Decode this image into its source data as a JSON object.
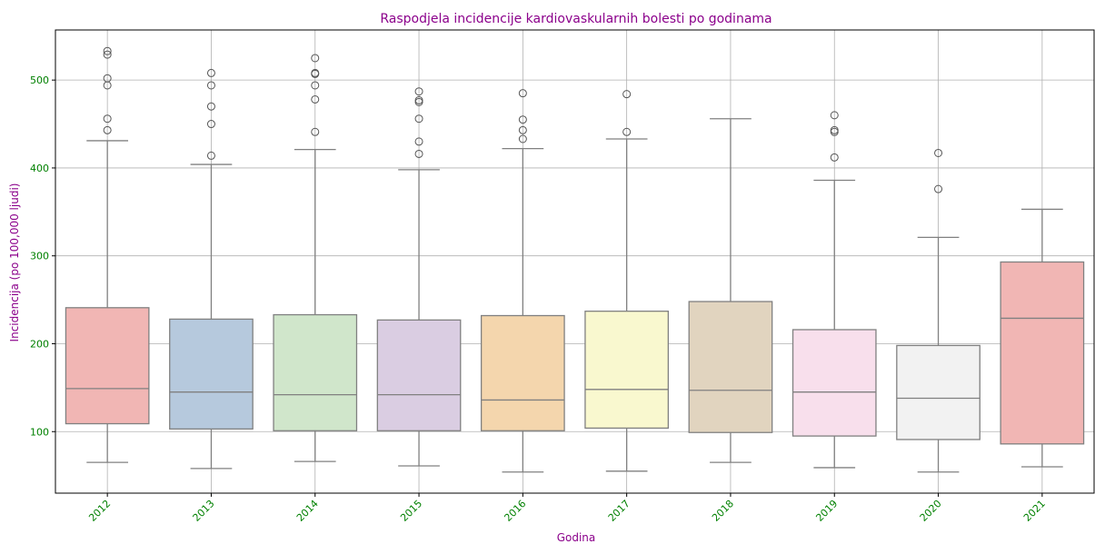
{
  "chart_data": {
    "type": "boxplot",
    "title": "Raspodjela incidencije kardiovaskularnih bolesti po godinama",
    "xlabel": "Godina",
    "ylabel": "Incidencija (po 100,000 ljudi)",
    "ylim": [
      30,
      557
    ],
    "yticks": [
      100,
      200,
      300,
      400,
      500
    ],
    "grid": true,
    "colors": {
      "title": "#8b008b",
      "axis_label": "#8b008b",
      "tick_label": "#008000",
      "box_edge": "#808080",
      "grid": "#b0b0b0"
    },
    "categories": [
      "2012",
      "2013",
      "2014",
      "2015",
      "2016",
      "2017",
      "2018",
      "2019",
      "2020",
      "2021"
    ],
    "boxes": [
      {
        "year": "2012",
        "whisker_low": 65,
        "q1": 109,
        "median": 149,
        "q3": 241,
        "whisker_high": 431,
        "outliers": [
          443,
          456,
          494,
          502,
          529,
          533
        ],
        "color": "#f1b6b4"
      },
      {
        "year": "2013",
        "whisker_low": 58,
        "q1": 103,
        "median": 145,
        "q3": 228,
        "whisker_high": 404,
        "outliers": [
          414,
          450,
          470,
          494,
          508
        ],
        "color": "#b6c9dd"
      },
      {
        "year": "2014",
        "whisker_low": 66,
        "q1": 101,
        "median": 142,
        "q3": 233,
        "whisker_high": 421,
        "outliers": [
          441,
          478,
          494,
          507,
          508,
          525
        ],
        "color": "#d0e6cb"
      },
      {
        "year": "2015",
        "whisker_low": 61,
        "q1": 101,
        "median": 142,
        "q3": 227,
        "whisker_high": 398,
        "outliers": [
          416,
          430,
          456,
          475,
          477,
          487
        ],
        "color": "#dacde2"
      },
      {
        "year": "2016",
        "whisker_low": 54,
        "q1": 101,
        "median": 136,
        "q3": 232,
        "whisker_high": 422,
        "outliers": [
          433,
          443,
          455,
          485
        ],
        "color": "#f4d6ad"
      },
      {
        "year": "2017",
        "whisker_low": 55,
        "q1": 104,
        "median": 148,
        "q3": 237,
        "whisker_high": 433,
        "outliers": [
          441,
          484
        ],
        "color": "#f9f8cf"
      },
      {
        "year": "2018",
        "whisker_low": 65,
        "q1": 99,
        "median": 147,
        "q3": 248,
        "whisker_high": 456,
        "outliers": [],
        "color": "#e1d4bf"
      },
      {
        "year": "2019",
        "whisker_low": 59,
        "q1": 95,
        "median": 145,
        "q3": 216,
        "whisker_high": 386,
        "outliers": [
          412,
          441,
          443,
          460
        ],
        "color": "#f8dfec"
      },
      {
        "year": "2020",
        "whisker_low": 54,
        "q1": 91,
        "median": 138,
        "q3": 198,
        "whisker_high": 321,
        "outliers": [
          376,
          417
        ],
        "color": "#f2f2f2"
      },
      {
        "year": "2021",
        "whisker_low": 60,
        "q1": 86,
        "median": 229,
        "q3": 293,
        "whisker_high": 353,
        "outliers": [],
        "color": "#f1b6b4"
      }
    ]
  }
}
